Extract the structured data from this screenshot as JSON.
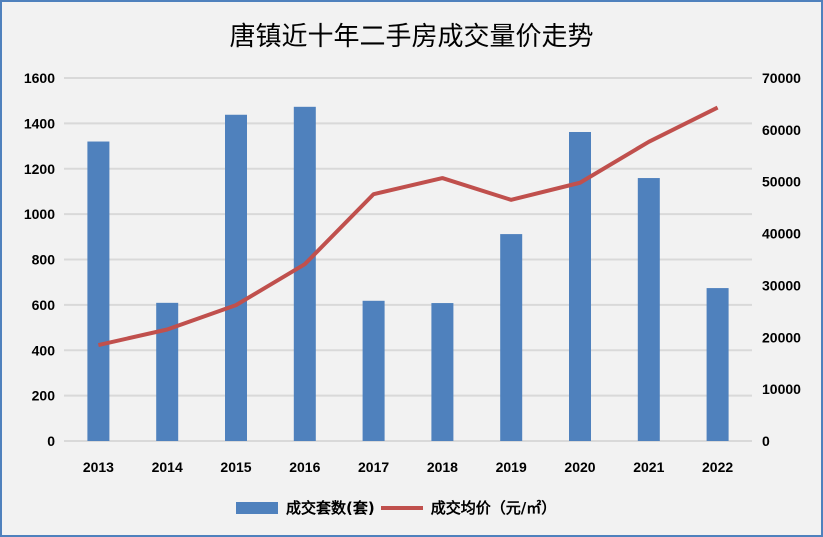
{
  "chart_data": {
    "type": "bar+line",
    "title": "唐镇近十年二手房成交量价走势",
    "categories": [
      "2013",
      "2014",
      "2015",
      "2016",
      "2017",
      "2018",
      "2019",
      "2020",
      "2021",
      "2022"
    ],
    "series": [
      {
        "name": "成交套数(套)",
        "type": "bar",
        "axis": "left",
        "color": "#4f81bd",
        "values": [
          1320,
          609,
          1438,
          1473,
          618,
          608,
          912,
          1362,
          1159,
          674
        ]
      },
      {
        "name": "成交均价（元/㎡）",
        "type": "line",
        "axis": "right",
        "color": "#c0504d",
        "values": [
          18500,
          21500,
          26200,
          34100,
          47600,
          50700,
          46500,
          49800,
          57700,
          64300
        ]
      }
    ],
    "y_left": {
      "range": [
        0,
        1600
      ],
      "ticks": [
        "0",
        "200",
        "400",
        "600",
        "800",
        "1000",
        "1200",
        "1400",
        "1600"
      ]
    },
    "y_right": {
      "range": [
        0,
        70000
      ],
      "ticks": [
        "0",
        "10000",
        "20000",
        "30000",
        "40000",
        "50000",
        "60000",
        "70000"
      ]
    },
    "grid": true,
    "legend": "bottom"
  }
}
